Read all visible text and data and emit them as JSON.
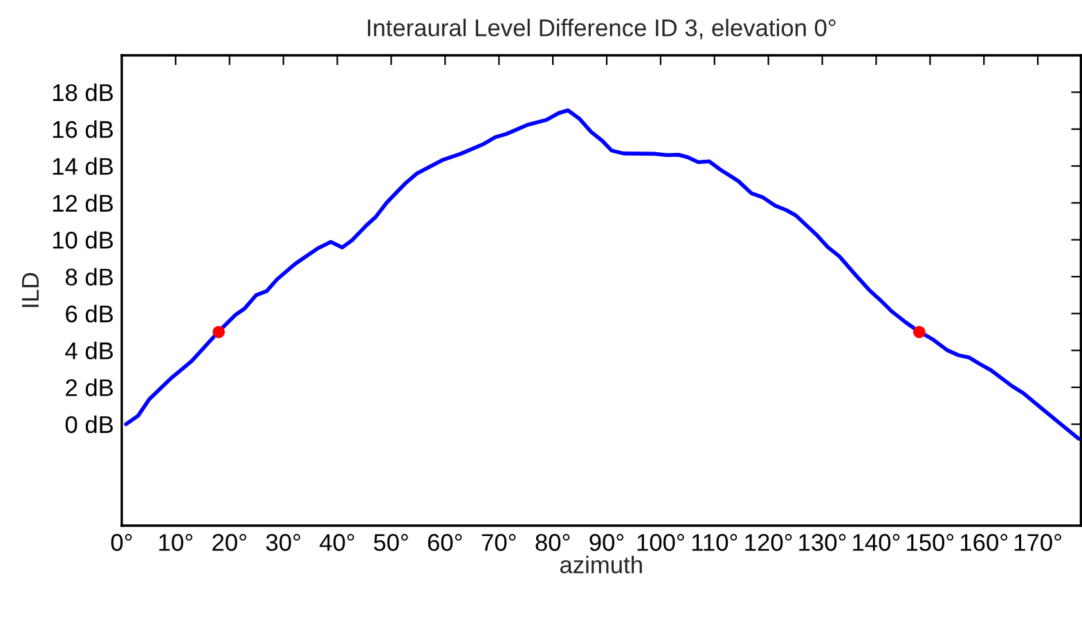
{
  "chart_data": {
    "type": "line",
    "title": "Interaural Level Difference ID 3, elevation 0°",
    "xlabel": "azimuth",
    "ylabel": "ILD",
    "xlim": [
      0,
      178
    ],
    "ylim": [
      -5.5,
      20
    ],
    "xticks": [
      {
        "value": 0,
        "label": "0°"
      },
      {
        "value": 10,
        "label": "10°"
      },
      {
        "value": 20,
        "label": "20°"
      },
      {
        "value": 30,
        "label": "30°"
      },
      {
        "value": 40,
        "label": "40°"
      },
      {
        "value": 50,
        "label": "50°"
      },
      {
        "value": 60,
        "label": "60°"
      },
      {
        "value": 70,
        "label": "70°"
      },
      {
        "value": 80,
        "label": "80°"
      },
      {
        "value": 90,
        "label": "90°"
      },
      {
        "value": 100,
        "label": "100°"
      },
      {
        "value": 110,
        "label": "110°"
      },
      {
        "value": 120,
        "label": "120°"
      },
      {
        "value": 130,
        "label": "130°"
      },
      {
        "value": 140,
        "label": "140°"
      },
      {
        "value": 150,
        "label": "150°"
      },
      {
        "value": 160,
        "label": "160°"
      },
      {
        "value": 170,
        "label": "170°"
      }
    ],
    "yticks": [
      {
        "value": 0,
        "label": "0 dB"
      },
      {
        "value": 2,
        "label": "2 dB"
      },
      {
        "value": 4,
        "label": "4 dB"
      },
      {
        "value": 6,
        "label": "6 dB"
      },
      {
        "value": 8,
        "label": "8 dB"
      },
      {
        "value": 10,
        "label": "10 dB"
      },
      {
        "value": 12,
        "label": "12 dB"
      },
      {
        "value": 14,
        "label": "14 dB"
      },
      {
        "value": 16,
        "label": "16 dB"
      },
      {
        "value": 18,
        "label": "18 dB"
      }
    ],
    "grid": false,
    "legend": false,
    "series": [
      {
        "color": "#0000ff",
        "marker": "none",
        "line_style": "solid",
        "x": [
          0.8,
          3.0,
          5.1,
          9.1,
          13.0,
          17.9,
          21.1,
          22.8,
          24.9,
          26.9,
          28.8,
          32.2,
          36.4,
          38.8,
          40.9,
          42.8,
          45.4,
          47.1,
          49.2,
          52.7,
          54.8,
          57.3,
          59.5,
          62.9,
          67.0,
          69.3,
          71.4,
          75.3,
          78.8,
          81.1,
          82.8,
          84.9,
          87.1,
          89.2,
          90.9,
          93.1,
          99.0,
          101.2,
          103.3,
          105.0,
          107.0,
          109.0,
          111.0,
          114.4,
          116.9,
          118.9,
          121.2,
          123.3,
          125.1,
          128.9,
          131.0,
          133.2,
          136.1,
          138.7,
          140.8,
          143.0,
          145.5,
          147.9,
          150.6,
          153.2,
          155.3,
          157.3,
          159.2,
          161.3,
          165.2,
          167.3,
          171.2,
          173.7,
          177.6
        ],
        "values": [
          0,
          0.45,
          1.35,
          2.48,
          3.43,
          5.0,
          5.93,
          6.27,
          6.99,
          7.22,
          7.85,
          8.7,
          9.54,
          9.88,
          9.58,
          9.99,
          10.78,
          11.23,
          12.02,
          13.08,
          13.6,
          13.98,
          14.32,
          14.66,
          15.17,
          15.56,
          15.74,
          16.23,
          16.5,
          16.87,
          17.02,
          16.57,
          15.85,
          15.36,
          14.84,
          14.68,
          14.66,
          14.59,
          14.61,
          14.48,
          14.21,
          14.25,
          13.82,
          13.19,
          12.51,
          12.31,
          11.86,
          11.61,
          11.32,
          10.28,
          9.61,
          9.09,
          8.12,
          7.28,
          6.72,
          6.09,
          5.52,
          5.03,
          4.58,
          4.01,
          3.74,
          3.61,
          3.27,
          2.93,
          2.07,
          1.69,
          0.74,
          0.14,
          -0.79
        ]
      },
      {
        "type": "scatter",
        "color": "#ff0000",
        "marker": "circle",
        "x": [
          18,
          148
        ],
        "values": [
          5,
          5
        ]
      }
    ]
  }
}
